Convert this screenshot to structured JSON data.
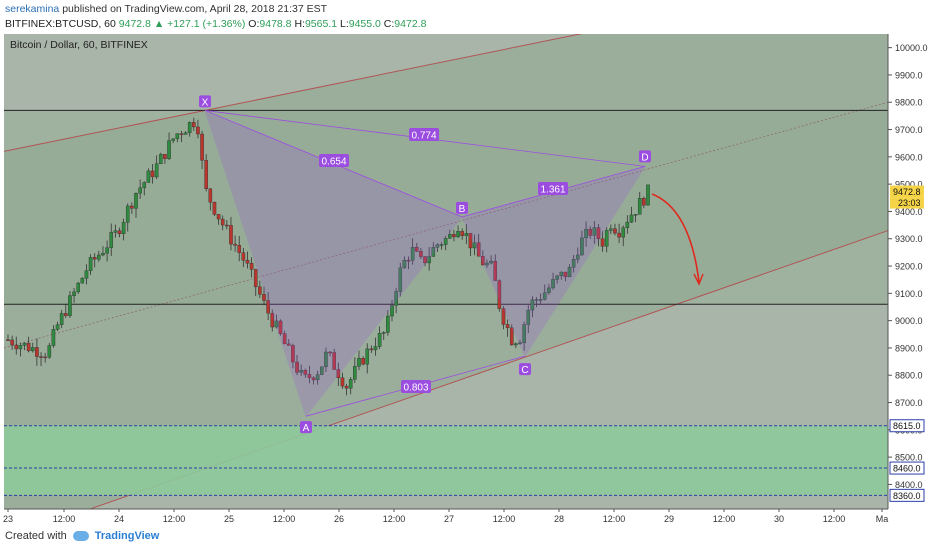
{
  "header": {
    "author": "serekamina",
    "published": " published on TradingView.com, April 28, 2018 21:37 EST",
    "symbol": "BITFINEX:BTCUSD, 60",
    "last": "9472.8",
    "change": "▲ +127.1 (+1.36%)",
    "o_label": "O:",
    "o": "9478.8",
    "h_label": "H:",
    "h": "9565.1",
    "l_label": "L:",
    "l": "9455.0",
    "c_label": "C:",
    "c": "9472.8"
  },
  "footer": {
    "created_with": "Created with",
    "brand": "TradingView"
  },
  "chart_data": {
    "type": "candlestick",
    "title": "Bitcoin / Dollar, 60, BITFINEX",
    "ylim": [
      8310,
      10050
    ],
    "y_ticks": [
      10000,
      9900,
      9800,
      9700,
      9600,
      9500,
      9400,
      9300,
      9200,
      9100,
      9000,
      8900,
      8800,
      8700,
      8600,
      8500,
      8400
    ],
    "x_tick_labels": [
      "23",
      "12:00",
      "24",
      "12:00",
      "25",
      "12:00",
      "26",
      "12:00",
      "27",
      "12:00",
      "28",
      "12:00",
      "29",
      "12:00",
      "30",
      "12:00",
      "Ma"
    ],
    "price_tags": [
      {
        "value": 9472.8,
        "label": "9472.8",
        "sub": "23:03"
      },
      {
        "value": 8615.0,
        "label": "8615.0"
      },
      {
        "value": 8460.0,
        "label": "8460.0"
      },
      {
        "value": 8360.0,
        "label": "8360.0"
      }
    ],
    "horizontal_lines": [
      9770,
      9060
    ],
    "pattern_points": [
      {
        "label": "X",
        "price": 9770
      },
      {
        "label": "A",
        "price": 8650
      },
      {
        "label": "B",
        "price": 9380
      },
      {
        "label": "C",
        "price": 8870
      },
      {
        "label": "D",
        "price": 9565
      }
    ],
    "ratios": [
      {
        "label": "0.774"
      },
      {
        "label": "0.654"
      },
      {
        "label": "1.361"
      },
      {
        "label": "0.803"
      }
    ],
    "colors": {
      "up": "#2e8a3e",
      "down": "#b8362d",
      "pattern": "#9b4de0",
      "zone_green": "#8ec99a",
      "channel": "#b05555",
      "arrow": "#e0281e"
    }
  }
}
